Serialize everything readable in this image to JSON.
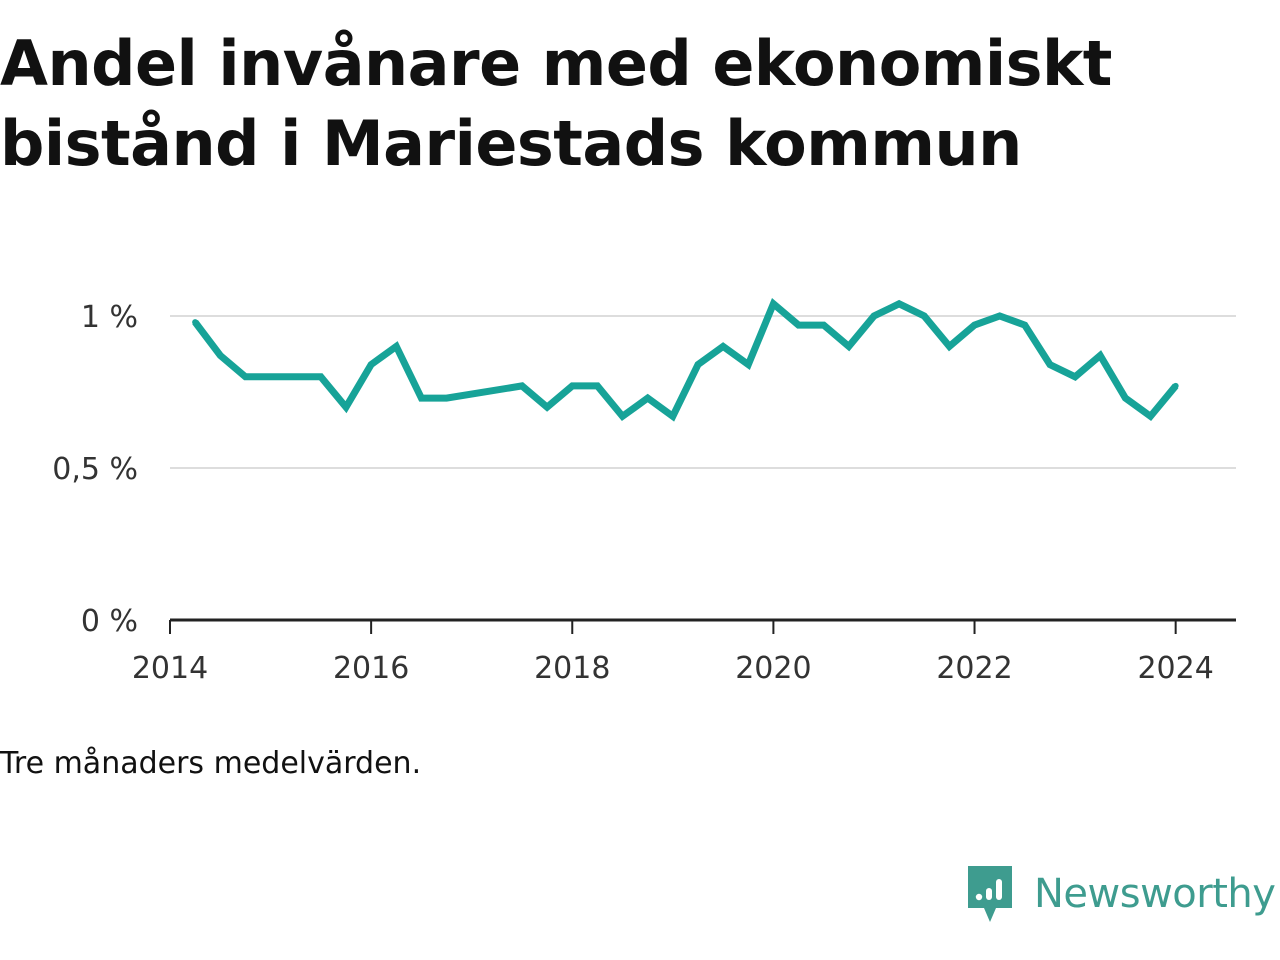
{
  "title": "Andel invånare med ekonomiskt bistånd i Mariestads kommun",
  "footnote": "Tre månaders medelvärden.",
  "brand": {
    "name": "Newsworthy",
    "logo_icon": "bar-chart-speech-bubble-icon"
  },
  "colors": {
    "line": "#17a398",
    "grid": "#dddddd",
    "axis": "#222222",
    "brand": "#3e9c8f"
  },
  "chart_data": {
    "type": "line",
    "title": "Andel invånare med ekonomiskt bistånd i Mariestads kommun",
    "xlabel": "",
    "ylabel": "",
    "xlim": [
      2014,
      2024.6
    ],
    "ylim": [
      0,
      1.0
    ],
    "grid": "horizontal",
    "x_ticks": [
      2014,
      2016,
      2018,
      2020,
      2022,
      2024
    ],
    "x_tick_labels": [
      "2014",
      "2016",
      "2018",
      "2020",
      "2022",
      "2024"
    ],
    "y_ticks": [
      0,
      0.5,
      1.0
    ],
    "y_tick_labels": [
      "0 %",
      "0,5 %",
      "1 %"
    ],
    "series": [
      {
        "x": [
          "2014-04",
          "2014-07",
          "2014-10",
          "2015-01",
          "2015-04",
          "2015-07",
          "2015-10",
          "2016-01",
          "2016-04",
          "2016-07",
          "2016-10",
          "2017-07",
          "2017-10",
          "2018-01",
          "2018-04",
          "2018-07",
          "2018-10",
          "2019-01",
          "2019-04",
          "2019-07",
          "2019-10",
          "2020-01",
          "2020-04",
          "2020-07",
          "2020-10",
          "2021-01",
          "2021-04",
          "2021-07",
          "2021-10",
          "2022-01",
          "2022-04",
          "2022-07",
          "2022-10",
          "2023-01",
          "2023-04",
          "2023-07",
          "2023-10",
          "2024-01"
        ],
        "values": [
          0.98,
          0.87,
          0.8,
          0.8,
          0.8,
          0.8,
          0.7,
          0.84,
          0.9,
          0.73,
          0.73,
          0.77,
          0.7,
          0.77,
          0.77,
          0.67,
          0.73,
          0.67,
          0.84,
          0.9,
          0.84,
          1.04,
          0.97,
          0.97,
          0.9,
          1.0,
          1.04,
          1.0,
          0.9,
          0.97,
          1.0,
          0.97,
          0.84,
          0.8,
          0.87,
          0.73,
          0.67,
          0.77
        ]
      }
    ]
  }
}
